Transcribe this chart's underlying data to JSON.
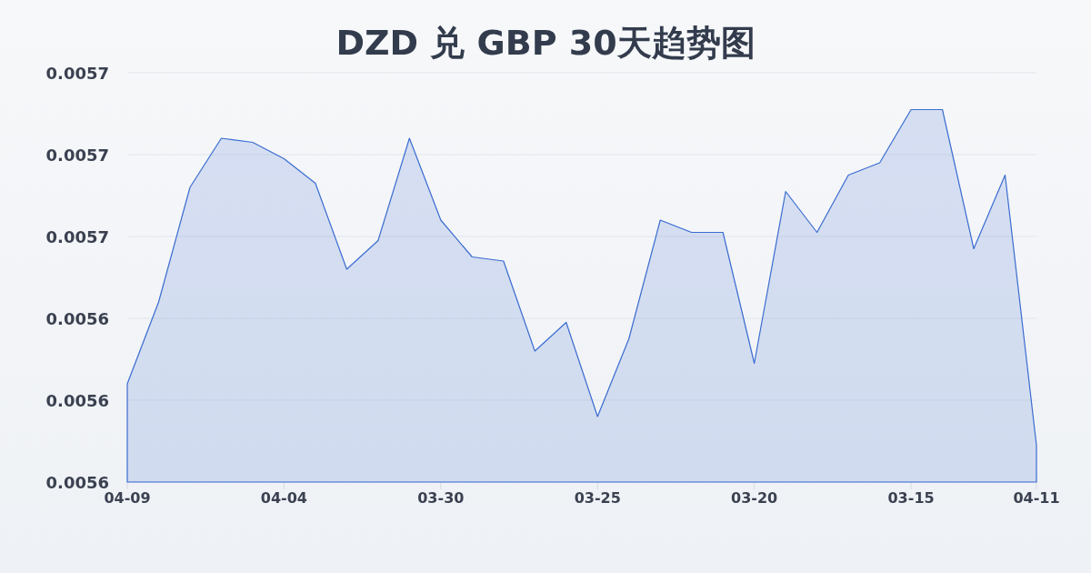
{
  "chart_data": {
    "type": "area",
    "title": "DZD 兑 GBP 30天趋势图",
    "categories": [
      "04-09",
      null,
      null,
      null,
      null,
      "04-04",
      null,
      null,
      null,
      null,
      "03-30",
      null,
      null,
      null,
      null,
      "03-25",
      null,
      null,
      null,
      null,
      "03-20",
      null,
      null,
      null,
      null,
      "03-15",
      null,
      null,
      null,
      "04-11"
    ],
    "values": [
      0.005624,
      0.005644,
      0.005672,
      0.005684,
      0.005683,
      0.005679,
      0.005673,
      0.005652,
      0.005659,
      0.005684,
      0.005664,
      0.005655,
      0.005654,
      0.005632,
      0.005639,
      0.005616,
      0.005635,
      0.005664,
      0.005661,
      0.005661,
      0.005629,
      0.005671,
      0.005661,
      0.005675,
      0.005678,
      0.005691,
      0.005691,
      0.005657,
      0.005675,
      0.005609
    ],
    "color": "#3a6cd0",
    "ylim": [
      0.0056,
      0.0057
    ],
    "yticks": [
      {
        "value": 0.0056,
        "label": "0.0056"
      },
      {
        "value": 0.00562,
        "label": "0.0056"
      },
      {
        "value": 0.00564,
        "label": "0.0056"
      },
      {
        "value": 0.00566,
        "label": "0.0057"
      },
      {
        "value": 0.00568,
        "label": "0.0057"
      },
      {
        "value": 0.0057,
        "label": "0.0057"
      }
    ],
    "grid": "y"
  }
}
